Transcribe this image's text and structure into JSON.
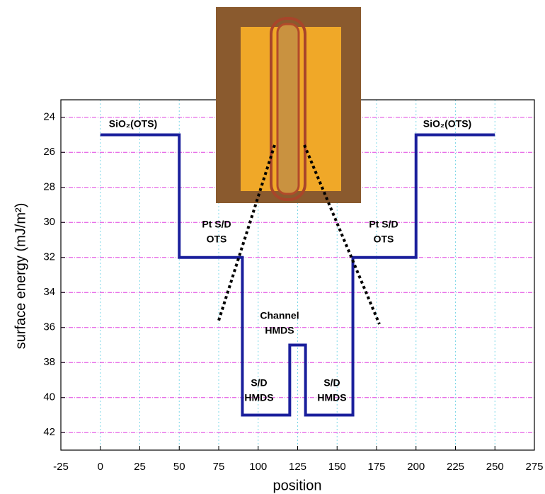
{
  "chart_data": {
    "type": "line",
    "xlabel": "position",
    "ylabel": "surface energy (mJ/m²)",
    "x": [
      0,
      50,
      50,
      90,
      90,
      120,
      120,
      130,
      130,
      160,
      160,
      200,
      200,
      250
    ],
    "series": [
      {
        "color": "#1a1f9c",
        "values": [
          25,
          25,
          32,
          32,
          41,
          41,
          37,
          37,
          41,
          41,
          32,
          32,
          25,
          25
        ]
      }
    ],
    "xlim": [
      -25,
      275
    ],
    "xticks": [
      -25,
      0,
      25,
      50,
      75,
      100,
      125,
      150,
      175,
      200,
      225,
      250,
      275
    ],
    "ylim": [
      23,
      43
    ],
    "yticks": [
      24,
      26,
      28,
      30,
      32,
      34,
      36,
      38,
      40,
      42
    ],
    "y_inverted": true,
    "grid": true,
    "annotations": [
      [
        "SiO₂(OTS)"
      ],
      [
        "SiO₂(OTS)"
      ],
      [
        "Pt S/D",
        "OTS"
      ],
      [
        "Pt S/D",
        "OTS"
      ],
      [
        "Channel",
        "HMDS"
      ],
      [
        "S/D",
        "HMDS"
      ],
      [
        "S/D",
        "HMDS"
      ]
    ]
  }
}
